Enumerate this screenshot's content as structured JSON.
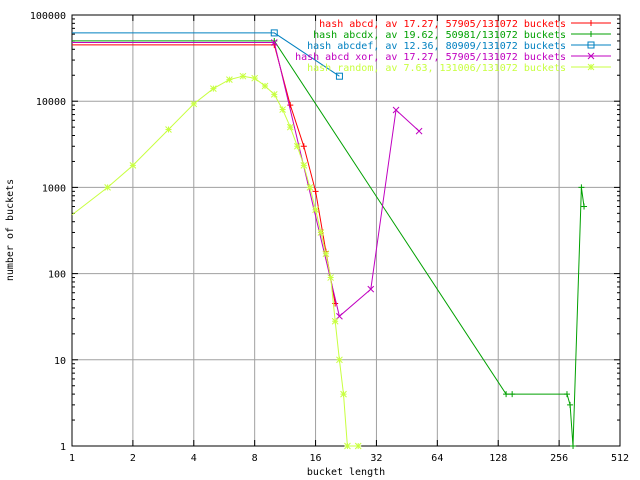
{
  "chart_data": {
    "type": "line",
    "xlabel": "bucket length",
    "ylabel": "number of buckets",
    "x_scale": "log2",
    "y_scale": "log10",
    "xlim": [
      1,
      512
    ],
    "ylim": [
      1,
      100000
    ],
    "x_ticks": [
      1,
      2,
      4,
      8,
      16,
      32,
      64,
      128,
      256,
      512
    ],
    "x_tick_labels": [
      "1",
      "2",
      "4",
      "8",
      "16",
      "32",
      "64",
      "128",
      "256",
      "512"
    ],
    "y_ticks": [
      1,
      10,
      100,
      1000,
      10000,
      100000
    ],
    "y_tick_labels": [
      "1",
      "10",
      "100",
      "1000",
      "10000",
      "100000"
    ],
    "grid": true,
    "legend_position": "top-right",
    "series": [
      {
        "name": "hash abcd, av 17.27, 57905/131072 buckets",
        "color": "#ff0000",
        "marker": "plus",
        "points": [
          [
            1,
            45000
          ],
          [
            10,
            45000
          ],
          [
            12,
            9000
          ],
          [
            14,
            3000
          ],
          [
            16,
            900
          ],
          [
            18,
            180
          ],
          [
            20,
            45
          ]
        ]
      },
      {
        "name": "hash abcdx, av 19.62, 50981/131072 buckets",
        "color": "#00a000",
        "marker": "plus",
        "points": [
          [
            1,
            50000
          ],
          [
            10,
            50000
          ],
          [
            140,
            4
          ],
          [
            150,
            4
          ],
          [
            280,
            4
          ],
          [
            290,
            3
          ],
          [
            300,
            1
          ],
          [
            330,
            1000
          ],
          [
            340,
            600
          ]
        ]
      },
      {
        "name": "hash abcdef, av 12.36, 80909/131072 buckets",
        "color": "#0080c0",
        "marker": "square",
        "points": [
          [
            1,
            62000
          ],
          [
            10,
            62000
          ],
          [
            21,
            19500
          ]
        ]
      },
      {
        "name": "hash abcd xor, av 17.27, 57905/131072 buckets",
        "color": "#c000c0",
        "marker": "cross",
        "points": [
          [
            1,
            48000
          ],
          [
            10,
            48000
          ],
          [
            21,
            32
          ],
          [
            30,
            66
          ],
          [
            40,
            7900
          ],
          [
            52,
            4500
          ]
        ]
      },
      {
        "name": "hash random, av 7.63, 131006/131072 buckets",
        "color": "#c8ff40",
        "marker": "star",
        "points": [
          [
            1,
            480
          ],
          [
            1.5,
            1000
          ],
          [
            2,
            1800
          ],
          [
            3,
            4700
          ],
          [
            4,
            9300
          ],
          [
            5,
            14000
          ],
          [
            6,
            17800
          ],
          [
            7,
            19500
          ],
          [
            8,
            18500
          ],
          [
            9,
            15000
          ],
          [
            10,
            12000
          ],
          [
            11,
            8000
          ],
          [
            12,
            5000
          ],
          [
            13,
            3000
          ],
          [
            14,
            1800
          ],
          [
            15,
            1000
          ],
          [
            16,
            550
          ],
          [
            17,
            300
          ],
          [
            18,
            170
          ],
          [
            19,
            90
          ],
          [
            20,
            28
          ],
          [
            21,
            10
          ],
          [
            22,
            4
          ],
          [
            23,
            1
          ],
          [
            26,
            1
          ]
        ]
      }
    ]
  }
}
